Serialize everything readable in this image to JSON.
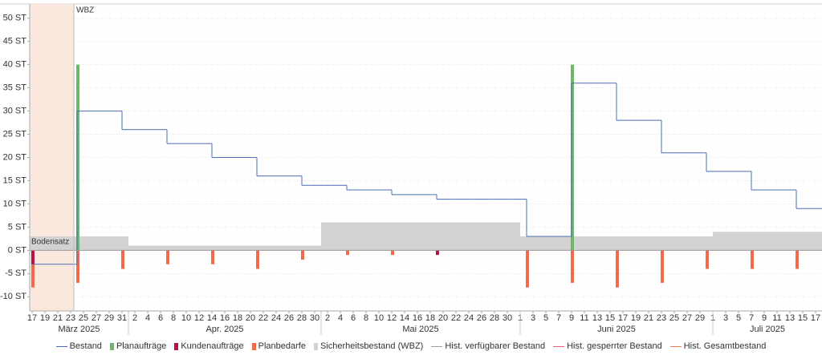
{
  "chart_data": {
    "type": "step",
    "xlim": [
      "2025-03-16",
      "2025-07-18"
    ],
    "ylim": [
      -11.5,
      51.5
    ],
    "yticks": [
      {
        "value": -10,
        "label": "-10 ST"
      },
      {
        "value": -5,
        "label": "-5 ST"
      },
      {
        "value": 0,
        "label": "0 ST"
      },
      {
        "value": 5,
        "label": "5 ST"
      },
      {
        "value": 10,
        "label": "10 ST"
      },
      {
        "value": 15,
        "label": "15 ST"
      },
      {
        "value": 20,
        "label": "20 ST"
      },
      {
        "value": 25,
        "label": "25 ST"
      },
      {
        "value": 30,
        "label": "30 ST"
      },
      {
        "value": 35,
        "label": "35 ST"
      },
      {
        "value": 40,
        "label": "40 ST"
      },
      {
        "value": 45,
        "label": "45 ST"
      },
      {
        "value": 50,
        "label": "50 ST"
      }
    ],
    "xticks": [
      {
        "value": "2025-03-17",
        "label": "17"
      },
      {
        "value": "2025-03-19",
        "label": "19"
      },
      {
        "value": "2025-03-21",
        "label": "21"
      },
      {
        "value": "2025-03-23",
        "label": "23"
      },
      {
        "value": "2025-03-25",
        "label": "25"
      },
      {
        "value": "2025-03-27",
        "label": "27"
      },
      {
        "value": "2025-03-29",
        "label": "29"
      },
      {
        "value": "2025-03-31",
        "label": "31"
      },
      {
        "value": "2025-04-02",
        "label": "2"
      },
      {
        "value": "2025-04-04",
        "label": "4"
      },
      {
        "value": "2025-04-06",
        "label": "6"
      },
      {
        "value": "2025-04-08",
        "label": "8"
      },
      {
        "value": "2025-04-10",
        "label": "10"
      },
      {
        "value": "2025-04-12",
        "label": "12"
      },
      {
        "value": "2025-04-14",
        "label": "14"
      },
      {
        "value": "2025-04-16",
        "label": "16"
      },
      {
        "value": "2025-04-18",
        "label": "18"
      },
      {
        "value": "2025-04-20",
        "label": "20"
      },
      {
        "value": "2025-04-22",
        "label": "22"
      },
      {
        "value": "2025-04-24",
        "label": "24"
      },
      {
        "value": "2025-04-26",
        "label": "26"
      },
      {
        "value": "2025-04-28",
        "label": "28"
      },
      {
        "value": "2025-04-30",
        "label": "30"
      },
      {
        "value": "2025-05-02",
        "label": "2"
      },
      {
        "value": "2025-05-04",
        "label": "4"
      },
      {
        "value": "2025-05-06",
        "label": "6"
      },
      {
        "value": "2025-05-08",
        "label": "8"
      },
      {
        "value": "2025-05-10",
        "label": "10"
      },
      {
        "value": "2025-05-12",
        "label": "12"
      },
      {
        "value": "2025-05-14",
        "label": "14"
      },
      {
        "value": "2025-05-16",
        "label": "16"
      },
      {
        "value": "2025-05-18",
        "label": "18"
      },
      {
        "value": "2025-05-20",
        "label": "20"
      },
      {
        "value": "2025-05-22",
        "label": "22"
      },
      {
        "value": "2025-05-24",
        "label": "24"
      },
      {
        "value": "2025-05-26",
        "label": "26"
      },
      {
        "value": "2025-05-28",
        "label": "28"
      },
      {
        "value": "2025-05-30",
        "label": "30"
      },
      {
        "value": "2025-06-01",
        "label": "1"
      },
      {
        "value": "2025-06-03",
        "label": "3"
      },
      {
        "value": "2025-06-05",
        "label": "5"
      },
      {
        "value": "2025-06-07",
        "label": "7"
      },
      {
        "value": "2025-06-09",
        "label": "9"
      },
      {
        "value": "2025-06-11",
        "label": "11"
      },
      {
        "value": "2025-06-13",
        "label": "13"
      },
      {
        "value": "2025-06-15",
        "label": "15"
      },
      {
        "value": "2025-06-17",
        "label": "17"
      },
      {
        "value": "2025-06-19",
        "label": "19"
      },
      {
        "value": "2025-06-21",
        "label": "21"
      },
      {
        "value": "2025-06-23",
        "label": "23"
      },
      {
        "value": "2025-06-25",
        "label": "25"
      },
      {
        "value": "2025-06-27",
        "label": "27"
      },
      {
        "value": "2025-06-29",
        "label": "29"
      },
      {
        "value": "2025-07-01",
        "label": "1"
      },
      {
        "value": "2025-07-03",
        "label": "3"
      },
      {
        "value": "2025-07-05",
        "label": "5"
      },
      {
        "value": "2025-07-07",
        "label": "7"
      },
      {
        "value": "2025-07-09",
        "label": "9"
      },
      {
        "value": "2025-07-11",
        "label": "11"
      },
      {
        "value": "2025-07-13",
        "label": "13"
      },
      {
        "value": "2025-07-15",
        "label": "15"
      },
      {
        "value": "2025-07-17",
        "label": "17"
      }
    ],
    "months": [
      {
        "label": "März 2025",
        "start": "2025-03-16",
        "end": "2025-04-01"
      },
      {
        "label": "Apr. 2025",
        "start": "2025-04-01",
        "end": "2025-05-01"
      },
      {
        "label": "Mai 2025",
        "start": "2025-05-01",
        "end": "2025-06-01"
      },
      {
        "label": "Juni 2025",
        "start": "2025-06-01",
        "end": "2025-07-01"
      },
      {
        "label": "Juli 2025",
        "start": "2025-07-01",
        "end": "2025-07-18"
      }
    ],
    "wbz_region": {
      "label": "WBZ",
      "start": "2025-03-16",
      "end": "2025-03-23T12:00",
      "color": "#fbe8dc"
    },
    "bodensatz_label": "Bodensatz",
    "grid": true,
    "series": [
      {
        "name": "Bestand",
        "style": "step_line",
        "color": "#4a6cb3",
        "x": [
          "2025-03-17",
          "2025-03-24",
          "2025-03-31",
          "2025-04-07",
          "2025-04-14",
          "2025-04-21",
          "2025-04-28",
          "2025-05-05",
          "2025-05-12",
          "2025-05-19",
          "2025-06-02",
          "2025-06-09",
          "2025-06-16",
          "2025-06-23",
          "2025-06-30",
          "2025-07-07",
          "2025-07-14"
        ],
        "values": [
          -3,
          30,
          26,
          23,
          20,
          16,
          14,
          13,
          12,
          11,
          3,
          36,
          28,
          21,
          17,
          13,
          9
        ]
      },
      {
        "name": "Planaufträge",
        "style": "bar",
        "color": "#6cb86a",
        "x": [
          "2025-03-24",
          "2025-06-09"
        ],
        "values": [
          40,
          40
        ]
      },
      {
        "name": "Kundenaufträge",
        "style": "bar",
        "color": "#b3124b",
        "x": [
          "2025-03-17",
          "2025-05-19"
        ],
        "values": [
          -3,
          -1
        ]
      },
      {
        "name": "Planbedarfe",
        "style": "bar",
        "color": "#f26a4b",
        "x": [
          "2025-03-17",
          "2025-03-24",
          "2025-03-31",
          "2025-04-07",
          "2025-04-14",
          "2025-04-21",
          "2025-04-28",
          "2025-05-05",
          "2025-05-12",
          "2025-06-02",
          "2025-06-09",
          "2025-06-16",
          "2025-06-23",
          "2025-06-30",
          "2025-07-07",
          "2025-07-14"
        ],
        "values": [
          -8,
          -7,
          -4,
          -3,
          -3,
          -4,
          -2,
          -1,
          -1,
          -8,
          -7,
          -8,
          -7,
          -4,
          -4,
          -4
        ]
      },
      {
        "name": "Sicherheitsbestand (WBZ)",
        "style": "step_area",
        "color": "#d2d2d2",
        "x": [
          "2025-03-16",
          "2025-04-01",
          "2025-05-01",
          "2025-06-01",
          "2025-07-01"
        ],
        "values": [
          3,
          1,
          6,
          3,
          4
        ]
      },
      {
        "name": "Hist. verfügbarer Bestand",
        "style": "line",
        "color": "#9a9a9a"
      },
      {
        "name": "Hist. gesperrter Bestand",
        "style": "line",
        "color": "#e85d78"
      },
      {
        "name": "Hist. Gesamtbestand",
        "style": "line",
        "color": "#f0784f"
      }
    ]
  }
}
